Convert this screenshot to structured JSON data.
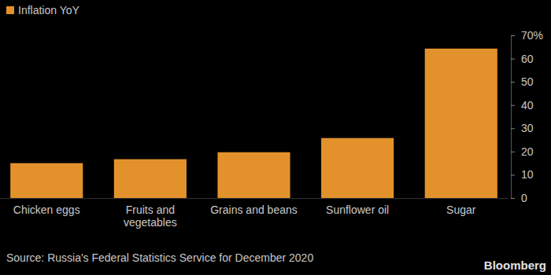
{
  "chart_data": {
    "type": "bar",
    "categories": [
      "Chicken eggs",
      "Fruits and vegetables",
      "Grains and beans",
      "Sunflower oil",
      "Sugar"
    ],
    "series": [
      {
        "name": "Inflation YoY",
        "color": "#e3922b",
        "values": [
          15,
          16.7,
          19.7,
          25.8,
          64.3
        ]
      }
    ],
    "ylim": [
      0,
      70
    ],
    "yticks": [
      0,
      10,
      20,
      30,
      40,
      50,
      60,
      {
        "value": 70,
        "label": "70%"
      }
    ],
    "grid": false,
    "legend": "top-left",
    "source": "Source: Russia's Federal Statistics Service for December 2020",
    "brand": "Bloomberg"
  }
}
